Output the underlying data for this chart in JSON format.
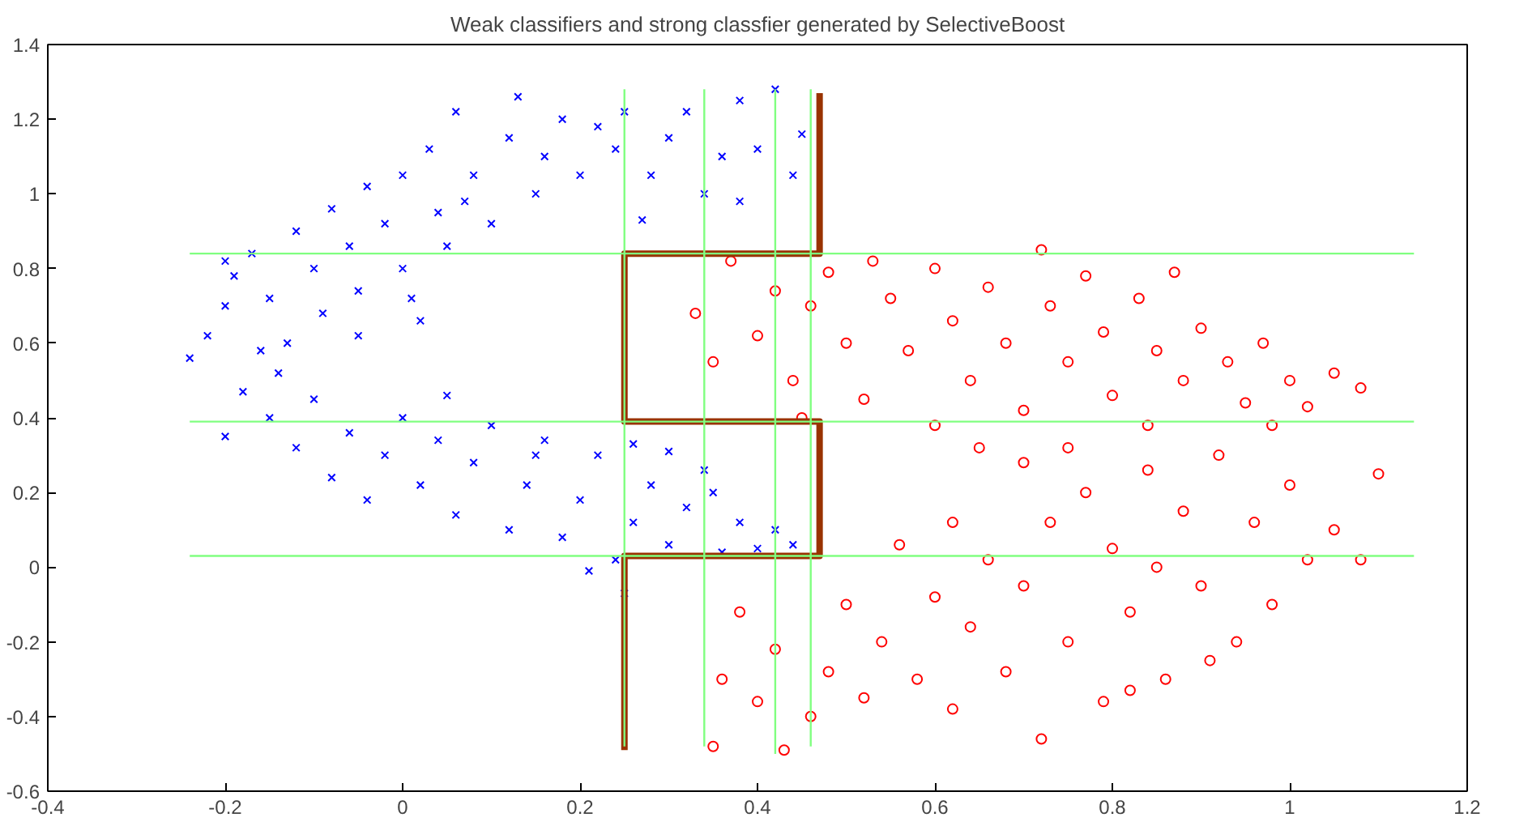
{
  "chart_data": {
    "type": "scatter",
    "title": "Weak classifiers and strong classfier generated by SelectiveBoost",
    "xlim": [
      -0.4,
      1.2
    ],
    "ylim": [
      -0.6,
      1.4
    ],
    "xticks": [
      -0.4,
      -0.2,
      0,
      0.2,
      0.4,
      0.6,
      0.8,
      1,
      1.2
    ],
    "yticks": [
      -0.6,
      -0.4,
      -0.2,
      0,
      0.2,
      0.4,
      0.6,
      0.8,
      1,
      1.2,
      1.4
    ],
    "grid": false,
    "series": [
      {
        "marker": "cross",
        "color": "#0000ff",
        "x": [
          -0.24,
          -0.22,
          -0.2,
          -0.19,
          -0.17,
          -0.15,
          -0.13,
          -0.12,
          -0.1,
          -0.09,
          -0.08,
          -0.06,
          -0.05,
          -0.04,
          -0.02,
          0.0,
          0.0,
          0.02,
          0.03,
          0.04,
          0.05,
          0.06,
          0.08,
          0.1,
          0.12,
          0.13,
          0.15,
          0.16,
          0.18,
          0.2,
          0.22,
          0.24,
          0.25,
          0.28,
          0.3,
          0.32,
          0.34,
          0.36,
          0.38,
          0.4,
          0.42,
          0.44,
          0.45,
          0.38,
          -0.2,
          -0.14,
          -0.05,
          0.01,
          0.27,
          0.07,
          -0.2,
          -0.18,
          -0.15,
          -0.12,
          -0.1,
          -0.08,
          -0.06,
          -0.04,
          -0.02,
          0.0,
          0.02,
          0.04,
          0.06,
          0.08,
          0.1,
          0.12,
          0.14,
          0.16,
          0.18,
          0.2,
          0.22,
          0.24,
          0.26,
          0.28,
          0.3,
          0.32,
          0.34,
          0.36,
          0.38,
          0.4,
          0.42,
          0.44,
          0.21,
          0.25,
          -0.16,
          0.05,
          0.15,
          0.3,
          0.35,
          0.26
        ],
        "values": [
          0.56,
          0.62,
          0.7,
          0.78,
          0.84,
          0.72,
          0.6,
          0.9,
          0.8,
          0.68,
          0.96,
          0.86,
          0.74,
          1.02,
          0.92,
          0.8,
          1.05,
          0.66,
          1.12,
          0.95,
          0.86,
          1.22,
          1.05,
          0.92,
          1.15,
          1.26,
          1.0,
          1.1,
          1.2,
          1.05,
          1.18,
          1.12,
          1.22,
          1.05,
          1.15,
          1.22,
          1.0,
          1.1,
          1.25,
          1.12,
          1.28,
          1.05,
          1.16,
          0.98,
          0.82,
          0.52,
          0.62,
          0.72,
          0.93,
          0.98,
          0.35,
          0.47,
          0.4,
          0.32,
          0.45,
          0.24,
          0.36,
          0.18,
          0.3,
          0.4,
          0.22,
          0.34,
          0.14,
          0.28,
          0.38,
          0.1,
          0.22,
          0.34,
          0.08,
          0.18,
          0.3,
          0.02,
          0.12,
          0.22,
          0.06,
          0.16,
          0.26,
          0.04,
          0.12,
          0.05,
          0.1,
          0.06,
          -0.01,
          -0.07,
          0.58,
          0.46,
          0.3,
          0.31,
          0.2,
          0.33
        ]
      },
      {
        "marker": "circle",
        "color": "#ff0000",
        "x": [
          0.33,
          0.35,
          0.37,
          0.4,
          0.42,
          0.44,
          0.46,
          0.48,
          0.5,
          0.52,
          0.55,
          0.57,
          0.6,
          0.62,
          0.64,
          0.66,
          0.68,
          0.7,
          0.72,
          0.73,
          0.75,
          0.77,
          0.79,
          0.8,
          0.83,
          0.85,
          0.87,
          0.88,
          0.9,
          0.93,
          0.95,
          0.97,
          1.0,
          1.02,
          1.05,
          1.08,
          0.98,
          0.6,
          0.45,
          0.53,
          0.84,
          0.35,
          0.36,
          0.38,
          0.4,
          0.42,
          0.43,
          0.46,
          0.48,
          0.5,
          0.52,
          0.54,
          0.56,
          0.58,
          0.6,
          0.62,
          0.64,
          0.66,
          0.68,
          0.7,
          0.72,
          0.73,
          0.75,
          0.77,
          0.79,
          0.8,
          0.82,
          0.84,
          0.86,
          0.88,
          0.9,
          0.92,
          0.94,
          0.96,
          0.98,
          1.0,
          1.02,
          1.05,
          1.08,
          1.1,
          0.7,
          0.65,
          0.85,
          0.62,
          0.75,
          0.91,
          0.82
        ],
        "values": [
          0.68,
          0.55,
          0.82,
          0.62,
          0.74,
          0.5,
          0.7,
          0.79,
          0.6,
          0.45,
          0.72,
          0.58,
          0.8,
          0.66,
          0.5,
          0.75,
          0.6,
          0.42,
          0.85,
          0.7,
          0.55,
          0.78,
          0.63,
          0.46,
          0.72,
          0.58,
          0.79,
          0.5,
          0.64,
          0.55,
          0.44,
          0.6,
          0.5,
          0.43,
          0.52,
          0.48,
          0.38,
          0.38,
          0.4,
          0.82,
          0.38,
          -0.48,
          -0.3,
          -0.12,
          -0.36,
          -0.22,
          -0.49,
          -0.4,
          -0.28,
          -0.1,
          -0.35,
          -0.2,
          0.06,
          -0.3,
          -0.08,
          -0.38,
          -0.16,
          0.02,
          -0.28,
          -0.05,
          -0.46,
          0.12,
          -0.2,
          0.2,
          -0.36,
          0.05,
          -0.12,
          0.26,
          -0.3,
          0.15,
          -0.05,
          0.3,
          -0.2,
          0.12,
          -0.1,
          0.22,
          0.02,
          0.1,
          0.02,
          0.25,
          0.28,
          0.32,
          0.0,
          0.12,
          0.32,
          -0.25,
          -0.33
        ]
      },
      {
        "type": "line",
        "marker": "none",
        "color": "#993300",
        "x": [
          0.25,
          0.25,
          0.47,
          0.47,
          0.25,
          0.25,
          0.47,
          0.47
        ],
        "values": [
          -0.49,
          0.03,
          0.03,
          0.39,
          0.39,
          0.84,
          0.84,
          1.27
        ]
      },
      {
        "type": "line",
        "marker": "none",
        "color": "#80ff80",
        "x": [
          -0.24,
          1.14
        ],
        "values": [
          0.84,
          0.84
        ]
      },
      {
        "type": "line",
        "marker": "none",
        "color": "#80ff80",
        "x": [
          -0.24,
          1.14
        ],
        "values": [
          0.39,
          0.39
        ]
      },
      {
        "type": "line",
        "marker": "none",
        "color": "#80ff80",
        "x": [
          -0.24,
          1.14
        ],
        "values": [
          0.03,
          0.03
        ]
      },
      {
        "type": "line",
        "marker": "none",
        "color": "#80ff80",
        "x": [
          0.25,
          0.25
        ],
        "values": [
          -0.48,
          1.28
        ]
      },
      {
        "type": "line",
        "marker": "none",
        "color": "#80ff80",
        "x": [
          0.34,
          0.34
        ],
        "values": [
          -0.48,
          1.28
        ]
      },
      {
        "type": "line",
        "marker": "none",
        "color": "#80ff80",
        "x": [
          0.42,
          0.42
        ],
        "values": [
          -0.5,
          1.28
        ]
      },
      {
        "type": "line",
        "marker": "none",
        "color": "#80ff80",
        "x": [
          0.46,
          0.46
        ],
        "values": [
          -0.48,
          1.28
        ]
      }
    ]
  }
}
